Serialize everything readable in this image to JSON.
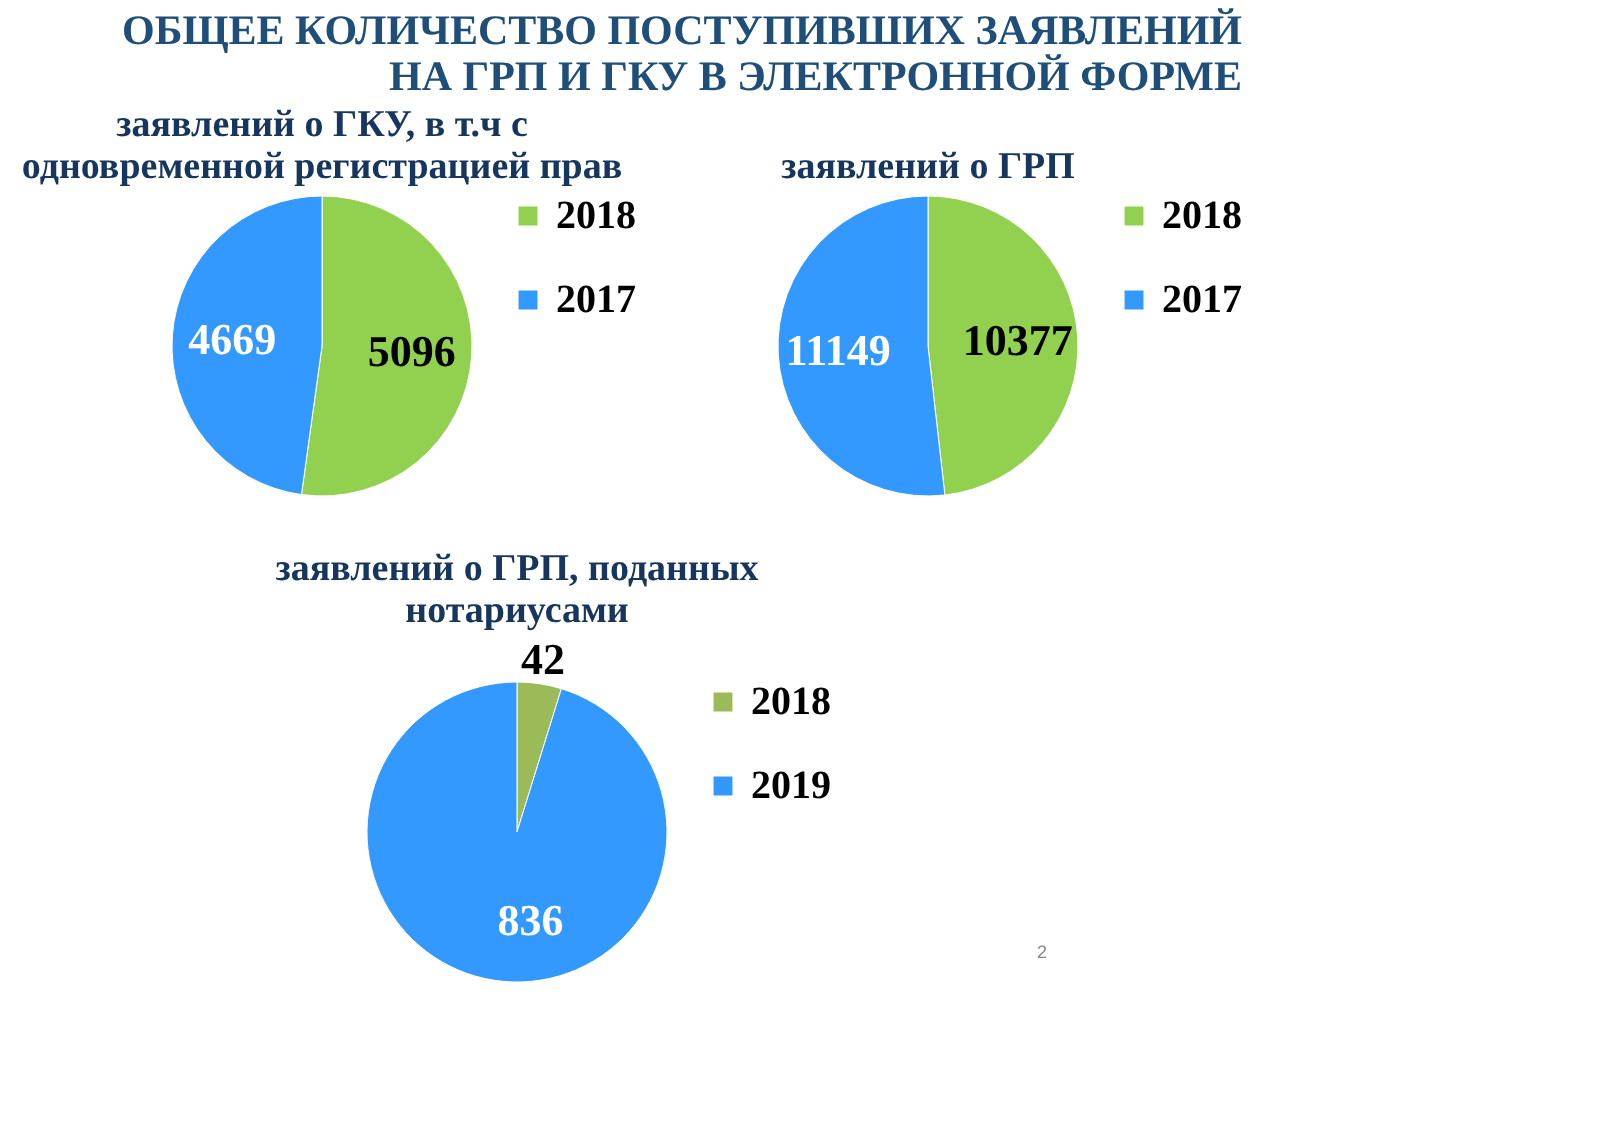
{
  "chart_data": [
    {
      "type": "pie",
      "title": "ОБЩЕЕ КОЛИЧЕСТВО ПОСТУПИВШИХ ЗАЯВЛЕНИЙ\nНА ГРП И ГКУ В ЭЛЕКТРОННОЙ ФОРМЕ",
      "subtitle": "заявлений о ГКУ, в т.ч с\nодновременной регистрацией прав",
      "categories": [
        "2018",
        "2017"
      ],
      "values": [
        5096,
        4669
      ],
      "colors": [
        "#92d050",
        "#3399ff"
      ],
      "data_labels": true,
      "legend": "right"
    },
    {
      "type": "pie",
      "title": "заявлений о ГРП",
      "categories": [
        "2018",
        "2017"
      ],
      "values": [
        10377,
        11149
      ],
      "colors": [
        "#92d050",
        "#3399ff"
      ],
      "data_labels": true,
      "legend": "right"
    },
    {
      "type": "pie",
      "title": "заявлений о ГРП, поданных\nнотариусами",
      "categories": [
        "2018",
        "2019"
      ],
      "values": [
        42,
        836
      ],
      "colors": [
        "#9bbb59",
        "#3399ff"
      ],
      "data_labels": true,
      "legend": "right",
      "annotations": [
        "2"
      ]
    }
  ]
}
